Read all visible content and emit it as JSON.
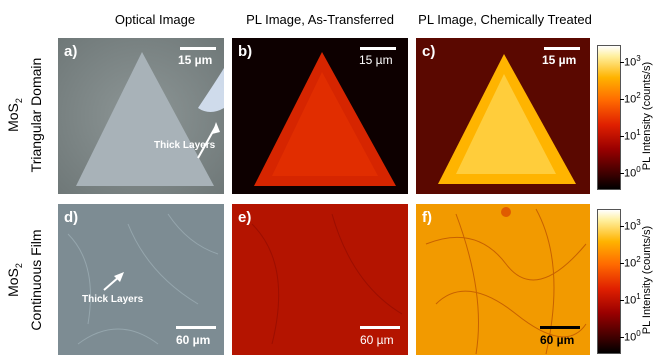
{
  "column_titles": [
    "Optical Image",
    "PL Image, As-Transferred",
    "PL Image, Chemically Treated"
  ],
  "rows": [
    {
      "material": "MoS",
      "subscript": "2",
      "label": "Triangular Domain"
    },
    {
      "material": "MoS",
      "subscript": "2",
      "label": "Continuous Film"
    }
  ],
  "panels": [
    {
      "letter": "a)",
      "scale": "15 µm"
    },
    {
      "letter": "b)",
      "scale": "15 µm"
    },
    {
      "letter": "c)",
      "scale": "15 µm"
    },
    {
      "letter": "d)",
      "scale": "60 µm"
    },
    {
      "letter": "e)",
      "scale": "60 µm"
    },
    {
      "letter": "f)",
      "scale": "60 µm"
    }
  ],
  "annotations": {
    "thick_layers_top": "Thick Layers",
    "thick_layers_bottom": "Thick Layers"
  },
  "colorbar": {
    "title": "PL Intensity (counts/s)",
    "ticks": [
      {
        "base": "10",
        "exp": "3"
      },
      {
        "base": "10",
        "exp": "2"
      },
      {
        "base": "10",
        "exp": "1"
      },
      {
        "base": "10",
        "exp": "0"
      }
    ],
    "colors": [
      "#000000",
      "#9a0000",
      "#e02000",
      "#ff6a00",
      "#ffb300",
      "#fff0a0",
      "#ffffff"
    ]
  }
}
